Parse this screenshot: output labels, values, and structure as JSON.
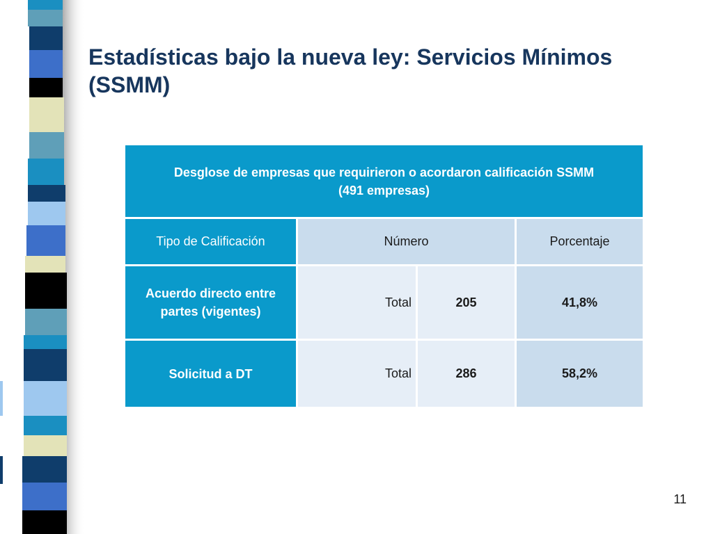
{
  "title": "Estadísticas bajo la nueva ley: Servicios Mínimos (SSMM)",
  "table": {
    "caption_line1": "Desglose de empresas que requirieron o acordaron calificación SSMM",
    "caption_line2": "(491 empresas)",
    "headers": [
      "Tipo de Calificación",
      "Número",
      "Porcentaje"
    ],
    "rows": [
      {
        "label": "Acuerdo directo entre partes (vigentes)",
        "sub": "Total",
        "numero": "205",
        "porcentaje": "41,8%"
      },
      {
        "label": "Solicitud a DT",
        "sub": "Total",
        "numero": "286",
        "porcentaje": "58,2%"
      }
    ]
  },
  "page_number": "11",
  "colors": {
    "title": "#17365d",
    "table_dark": "#0a9acb",
    "table_mid": "#c9dced",
    "table_light": "#e6eef7",
    "strip": [
      "#1a8fc1",
      "#0f3d6b",
      "#3d6fc9",
      "#e3e3b8",
      "#000000",
      "#9ec8ef",
      "#2d8db1"
    ]
  }
}
